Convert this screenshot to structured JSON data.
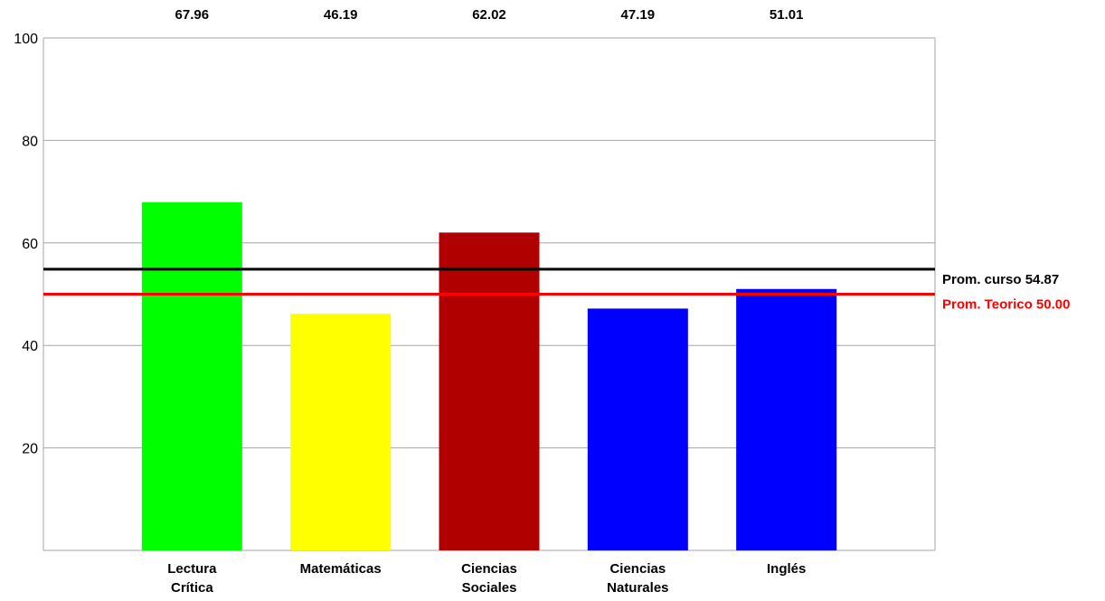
{
  "chart_data": {
    "type": "bar",
    "categories": [
      [
        "Lectura",
        "Crítica"
      ],
      [
        "Matemáticas"
      ],
      [
        "Ciencias",
        "Sociales"
      ],
      [
        "Ciencias",
        "Naturales"
      ],
      [
        "Inglés"
      ]
    ],
    "values": [
      67.96,
      46.19,
      62.02,
      47.19,
      51.01
    ],
    "value_labels": [
      "67.96",
      "46.19",
      "62.02",
      "47.19",
      "51.01"
    ],
    "colors": [
      "#00ff00",
      "#ffff00",
      "#b00000",
      "#0000ff",
      "#0000ff"
    ],
    "ylim": [
      0,
      100
    ],
    "yticks": [
      20,
      40,
      60,
      80,
      100
    ],
    "ytick_labels": [
      "20",
      "40",
      "60",
      "80",
      "100"
    ],
    "grid": true,
    "reference_lines": [
      {
        "label": "Prom. curso 54.87",
        "value": 54.87,
        "color": "#000000"
      },
      {
        "label": "Prom. Teorico 50.00",
        "value": 50.0,
        "color": "#ff0000"
      }
    ],
    "title": "",
    "xlabel": "",
    "ylabel": ""
  }
}
